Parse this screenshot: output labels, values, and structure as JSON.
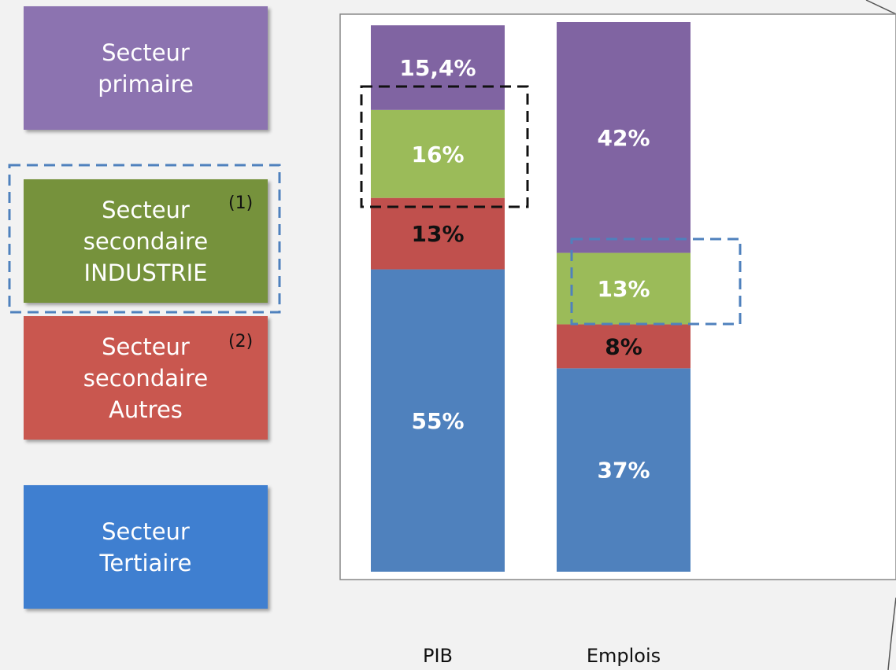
{
  "chart_data": {
    "type": "bar",
    "stacked": true,
    "categories": [
      "PIB",
      "Emplois"
    ],
    "series": [
      {
        "name": "Secteur Tertiaire",
        "color": "#4f81bd",
        "values": [
          55,
          37
        ],
        "value_labels": [
          "55%",
          "37%"
        ]
      },
      {
        "name": "Secteur secondaire Autres",
        "color": "#c0504d",
        "values": [
          13,
          8
        ],
        "value_labels": [
          "13%",
          "8%"
        ]
      },
      {
        "name": "Secteur secondaire INDUSTRIE",
        "color": "#9bbb59",
        "values": [
          16,
          13
        ],
        "value_labels": [
          "16%",
          "13%"
        ]
      },
      {
        "name": "Secteur primaire",
        "color": "#8064a2",
        "values": [
          15.4,
          42
        ],
        "value_labels": [
          "15,4%",
          "42%"
        ]
      }
    ],
    "legend_colors": [
      "#3f7fd0",
      "#c9574f",
      "#76923c",
      "#8c73b0"
    ],
    "annotations": [
      "(2)",
      "(1)"
    ],
    "ylim": [
      0,
      100
    ]
  }
}
